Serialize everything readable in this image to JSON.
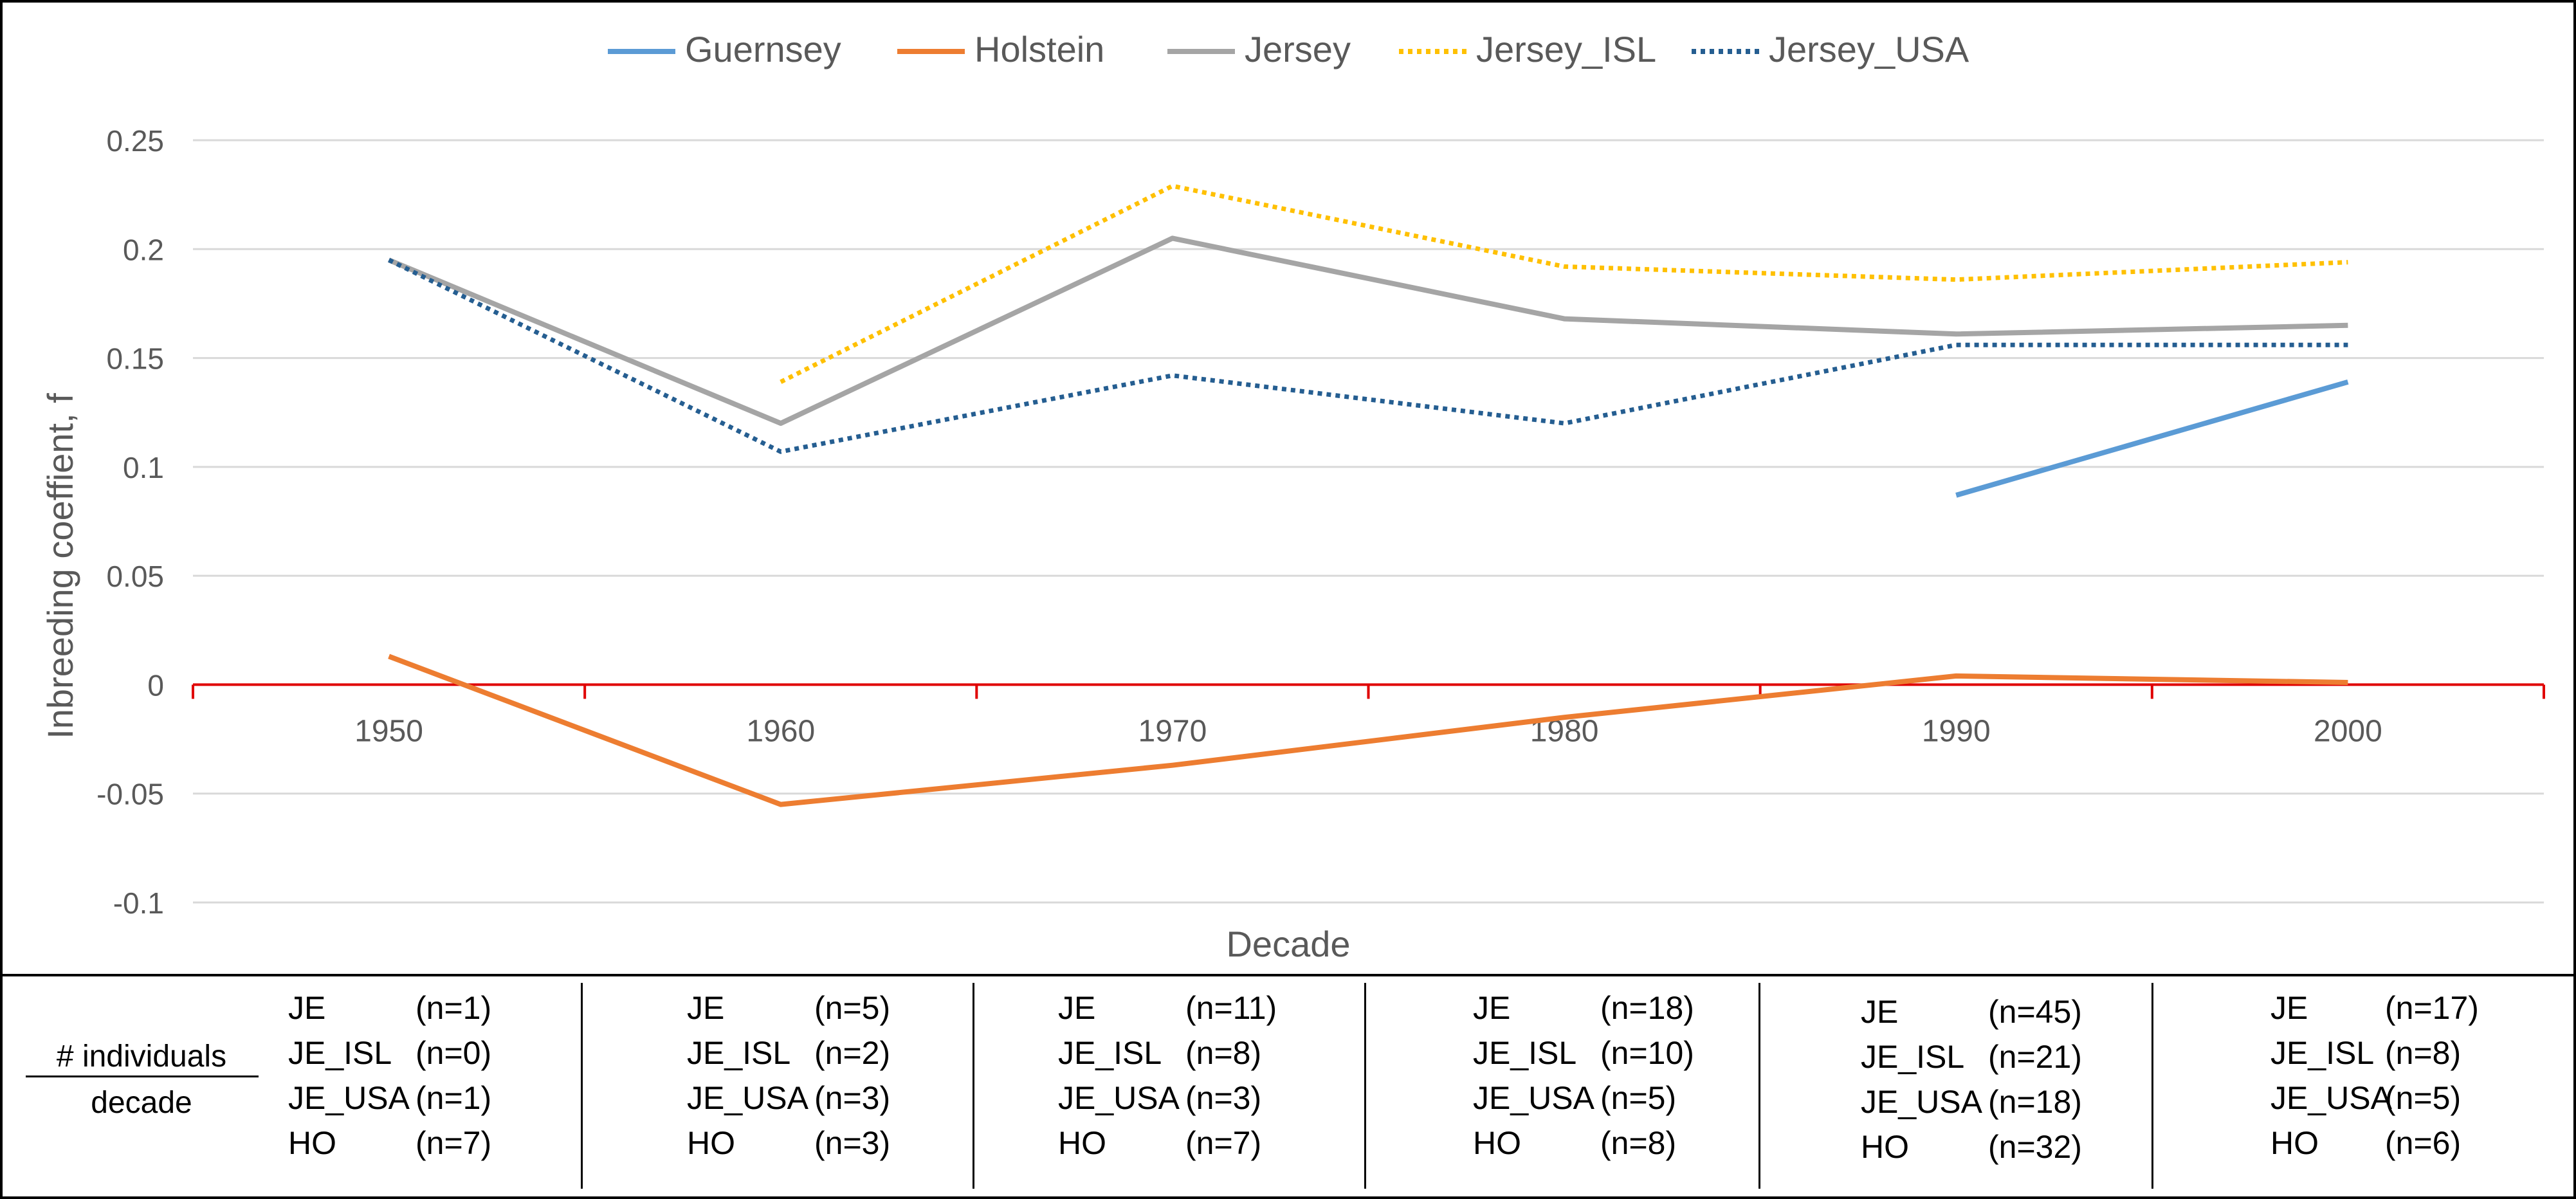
{
  "chart_data": {
    "type": "line",
    "xlabel": "Decade",
    "ylabel": "Inbreeding coeffient, f",
    "categories": [
      "1950",
      "1960",
      "1970",
      "1980",
      "1990",
      "2000"
    ],
    "ylim": [
      -0.1,
      0.25
    ],
    "yticks": [
      -0.1,
      -0.05,
      0,
      0.05,
      0.1,
      0.15,
      0.2,
      0.25
    ],
    "ytick_labels": [
      "-0.1",
      "-0.05",
      "0",
      "0.05",
      "0.1",
      "0.15",
      "0.2",
      "0.25"
    ],
    "grid": true,
    "legend_position": "top",
    "zero_line_color": "#e00000",
    "series": [
      {
        "name": "Guernsey",
        "color": "#5b9bd5",
        "style": "solid",
        "values": [
          null,
          null,
          null,
          null,
          0.087,
          0.139
        ]
      },
      {
        "name": "Holstein",
        "color": "#ed7d31",
        "style": "solid",
        "values": [
          0.013,
          -0.055,
          -0.037,
          -0.015,
          0.004,
          0.001
        ]
      },
      {
        "name": "Jersey",
        "color": "#a5a5a5",
        "style": "solid",
        "values": [
          0.195,
          0.12,
          0.205,
          0.168,
          0.161,
          0.165
        ]
      },
      {
        "name": "Jersey_ISL",
        "color": "#ffc000",
        "style": "dotted",
        "values": [
          null,
          0.139,
          0.229,
          0.192,
          0.186,
          0.194
        ]
      },
      {
        "name": "Jersey_USA",
        "color": "#255e91",
        "style": "dotted",
        "values": [
          0.195,
          0.107,
          0.142,
          0.12,
          0.156,
          0.156
        ]
      }
    ]
  },
  "table": {
    "row_label_top": "# individuals",
    "row_label_bottom": "decade",
    "columns": [
      {
        "decade": "1950",
        "entries": [
          {
            "code": "JE",
            "count": "(n=1)"
          },
          {
            "code": "JE_ISL",
            "count": "(n=0)"
          },
          {
            "code": "JE_USA",
            "count": "(n=1)"
          },
          {
            "code": "HO",
            "count": "(n=7)"
          }
        ]
      },
      {
        "decade": "1960",
        "entries": [
          {
            "code": "JE",
            "count": "(n=5)"
          },
          {
            "code": "JE_ISL",
            "count": "(n=2)"
          },
          {
            "code": "JE_USA",
            "count": "(n=3)"
          },
          {
            "code": "HO",
            "count": "(n=3)"
          }
        ]
      },
      {
        "decade": "1970",
        "entries": [
          {
            "code": "JE",
            "count": "(n=11)"
          },
          {
            "code": "JE_ISL",
            "count": "(n=8)"
          },
          {
            "code": "JE_USA",
            "count": "(n=3)"
          },
          {
            "code": "HO",
            "count": "(n=7)"
          }
        ]
      },
      {
        "decade": "1980",
        "entries": [
          {
            "code": "JE",
            "count": "(n=18)"
          },
          {
            "code": "JE_ISL",
            "count": "(n=10)"
          },
          {
            "code": "JE_USA",
            "count": "(n=5)"
          },
          {
            "code": "HO",
            "count": "(n=8)"
          }
        ]
      },
      {
        "decade": "1990",
        "entries": [
          {
            "code": "JE",
            "count": "(n=45)"
          },
          {
            "code": "JE_ISL",
            "count": "(n=21)"
          },
          {
            "code": "JE_USA",
            "count": "(n=18)"
          },
          {
            "code": "HO",
            "count": "(n=32)"
          }
        ]
      },
      {
        "decade": "2000",
        "entries": [
          {
            "code": "JE",
            "count": "(n=17)"
          },
          {
            "code": "JE_ISL",
            "count": "(n=8)"
          },
          {
            "code": "JE_USA",
            "count": "(n=5)"
          },
          {
            "code": "HO",
            "count": "(n=6)"
          }
        ]
      }
    ]
  }
}
